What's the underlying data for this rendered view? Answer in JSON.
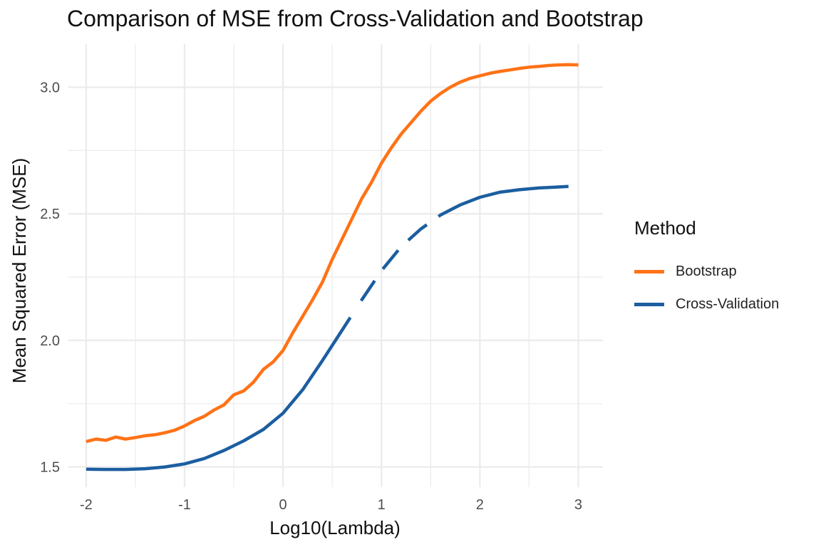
{
  "colors": {
    "bootstrap": "#FF7216",
    "cross_validation": "#1C5EA0",
    "grid": "#EBEBEB"
  },
  "legend": {
    "title": "Method",
    "items": [
      {
        "label": "Bootstrap",
        "color": "#FF7216",
        "linestyle": "solid"
      },
      {
        "label": "Cross-Validation",
        "color": "#1C5EA0",
        "linestyle": "dashed"
      }
    ]
  },
  "chart_data": {
    "type": "line",
    "title": "Comparison of MSE from Cross-Validation and Bootstrap",
    "xlabel": "Log10(Lambda)",
    "ylabel": "Mean Squared Error (MSE)",
    "xlim": [
      -2.18,
      3.25
    ],
    "ylim": [
      1.42,
      3.17
    ],
    "x_ticks": [
      -2,
      -1,
      0,
      1,
      2,
      3
    ],
    "x_tick_labels": [
      "-2",
      "-1",
      "0",
      "1",
      "2",
      "3"
    ],
    "y_ticks": [
      1.5,
      2.0,
      2.5,
      3.0
    ],
    "y_tick_labels": [
      "1.5",
      "2.0",
      "2.5",
      "3.0"
    ],
    "grid": true,
    "legend_position": "right",
    "series": [
      {
        "name": "Bootstrap",
        "color": "#FF7216",
        "linestyle": "solid",
        "x": [
          -2.0,
          -1.9,
          -1.8,
          -1.7,
          -1.6,
          -1.5,
          -1.4,
          -1.3,
          -1.2,
          -1.1,
          -1.0,
          -0.9,
          -0.8,
          -0.7,
          -0.6,
          -0.5,
          -0.4,
          -0.3,
          -0.2,
          -0.1,
          0.0,
          0.1,
          0.2,
          0.3,
          0.4,
          0.5,
          0.6,
          0.7,
          0.8,
          0.9,
          1.0,
          1.1,
          1.2,
          1.3,
          1.4,
          1.5,
          1.6,
          1.7,
          1.8,
          1.9,
          2.0,
          2.1,
          2.2,
          2.3,
          2.4,
          2.5,
          2.6,
          2.7,
          2.8,
          2.9,
          3.0
        ],
        "y": [
          1.6,
          1.61,
          1.605,
          1.618,
          1.61,
          1.616,
          1.623,
          1.627,
          1.635,
          1.645,
          1.662,
          1.683,
          1.7,
          1.725,
          1.745,
          1.785,
          1.8,
          1.835,
          1.885,
          1.915,
          1.96,
          2.03,
          2.095,
          2.16,
          2.23,
          2.32,
          2.4,
          2.48,
          2.56,
          2.625,
          2.7,
          2.76,
          2.815,
          2.86,
          2.905,
          2.945,
          2.975,
          3.0,
          3.02,
          3.035,
          3.045,
          3.055,
          3.062,
          3.068,
          3.074,
          3.079,
          3.082,
          3.086,
          3.088,
          3.089,
          3.088
        ]
      },
      {
        "name": "Cross-Validation",
        "color": "#1C5EA0",
        "linestyle": "dashed",
        "x": [
          -2.0,
          -1.8,
          -1.6,
          -1.4,
          -1.2,
          -1.0,
          -0.8,
          -0.6,
          -0.4,
          -0.2,
          0.0,
          0.2,
          0.4,
          0.6,
          0.8,
          1.0,
          1.2,
          1.4,
          1.6,
          1.8,
          2.0,
          2.2,
          2.4,
          2.6,
          2.8,
          2.9
        ],
        "y": [
          1.491,
          1.49,
          1.49,
          1.493,
          1.5,
          1.512,
          1.533,
          1.565,
          1.603,
          1.648,
          1.712,
          1.805,
          1.92,
          2.04,
          2.16,
          2.275,
          2.37,
          2.44,
          2.495,
          2.535,
          2.565,
          2.585,
          2.595,
          2.602,
          2.606,
          2.608
        ]
      }
    ]
  }
}
